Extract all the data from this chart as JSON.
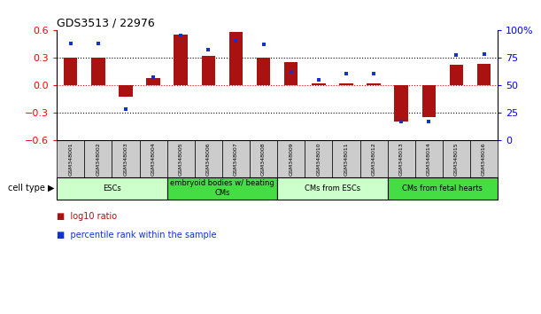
{
  "title": "GDS3513 / 22976",
  "samples": [
    "GSM348001",
    "GSM348002",
    "GSM348003",
    "GSM348004",
    "GSM348005",
    "GSM348006",
    "GSM348007",
    "GSM348008",
    "GSM348009",
    "GSM348010",
    "GSM348011",
    "GSM348012",
    "GSM348013",
    "GSM348014",
    "GSM348015",
    "GSM348016"
  ],
  "log10_ratio": [
    0.3,
    0.3,
    -0.13,
    0.08,
    0.55,
    0.32,
    0.58,
    0.3,
    0.25,
    0.02,
    0.02,
    0.02,
    -0.4,
    -0.35,
    0.22,
    0.23
  ],
  "percentile_rank": [
    88,
    88,
    28,
    57,
    95,
    82,
    90,
    87,
    62,
    55,
    60,
    60,
    17,
    17,
    77,
    78
  ],
  "cell_type_groups": [
    {
      "label": "ESCs",
      "start": 0,
      "end": 3,
      "color": "#ccffcc"
    },
    {
      "label": "embryoid bodies w/ beating\nCMs",
      "start": 4,
      "end": 7,
      "color": "#44dd44"
    },
    {
      "label": "CMs from ESCs",
      "start": 8,
      "end": 11,
      "color": "#ccffcc"
    },
    {
      "label": "CMs from fetal hearts",
      "start": 12,
      "end": 15,
      "color": "#44dd44"
    }
  ],
  "bar_color": "#aa1111",
  "dot_color": "#1133cc",
  "ylim_left": [
    -0.6,
    0.6
  ],
  "ylim_right": [
    0,
    100
  ],
  "yticks_left": [
    -0.6,
    -0.3,
    0.0,
    0.3,
    0.6
  ],
  "yticks_right": [
    0,
    25,
    50,
    75,
    100
  ],
  "right_tick_labels": [
    "0",
    "25",
    "50",
    "75",
    "100%"
  ],
  "hlines_dotted": [
    -0.3,
    0.3
  ],
  "hline_zero": 0.0,
  "bar_width": 0.5,
  "sample_box_color": "#cccccc",
  "legend_bar_label": "log10 ratio",
  "legend_dot_label": "percentile rank within the sample",
  "cell_type_label": "cell type"
}
